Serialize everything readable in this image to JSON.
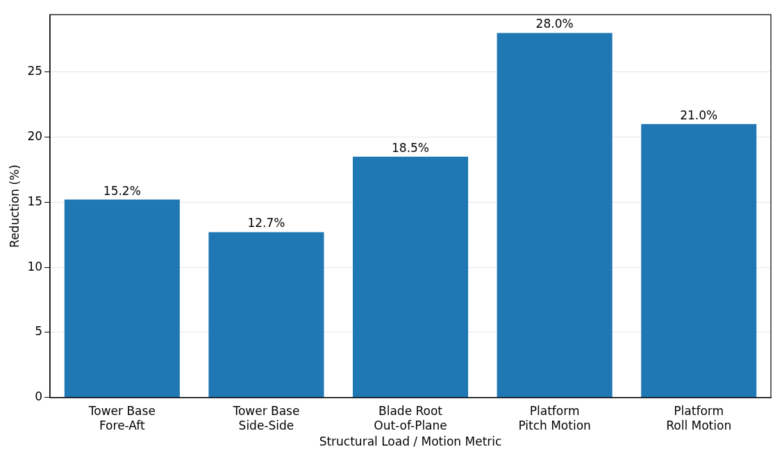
{
  "chart_data": {
    "type": "bar",
    "xlabel": "Structural Load / Motion Metric",
    "ylabel": "Reduction (%)",
    "categories": [
      "Tower Base\nFore-Aft",
      "Tower Base\nSide-Side",
      "Blade Root\nOut-of-Plane",
      "Platform\nPitch Motion",
      "Platform\nRoll Motion"
    ],
    "values": [
      15.2,
      12.7,
      18.5,
      28.0,
      21.0
    ],
    "value_labels": [
      "15.2%",
      "12.7%",
      "18.5%",
      "28.0%",
      "21.0%"
    ],
    "color": "#1f77b4",
    "ylim": [
      0,
      29.4
    ],
    "yticks": [
      0,
      5,
      10,
      15,
      20,
      25
    ],
    "grid": "y",
    "legend": false
  }
}
